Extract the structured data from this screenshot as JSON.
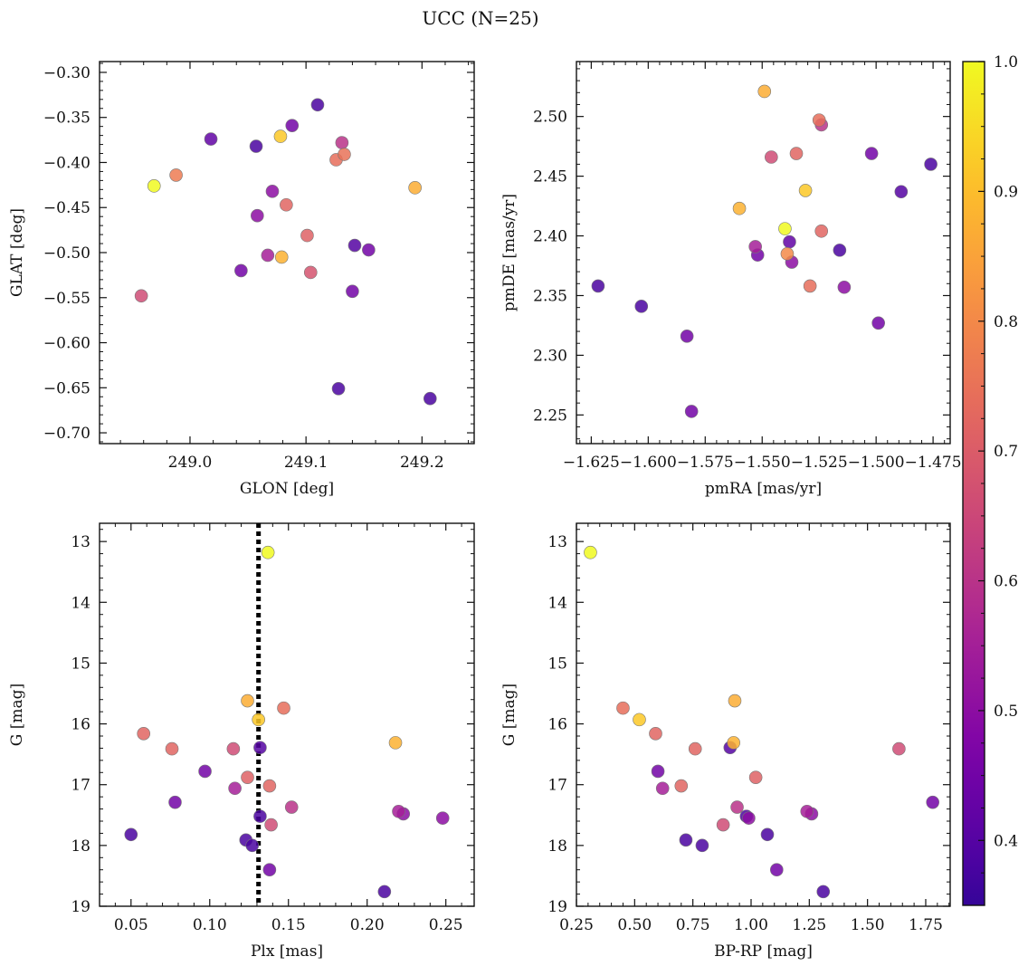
{
  "title": "UCC (N=25)",
  "colorbar": {
    "range": [
      0.35,
      1.0
    ],
    "ticks": [
      0.4,
      0.5,
      0.6,
      0.7,
      0.8,
      0.9,
      1.0
    ],
    "tick_labels": [
      "0.4",
      "0.5",
      "0.6",
      "0.7",
      "0.8",
      "0.9",
      "1.0"
    ],
    "colormap": "plasma"
  },
  "chart_data": [
    {
      "type": "scatter",
      "xlabel": "GLON [deg]",
      "ylabel": "GLAT [deg]",
      "xlim": [
        248.922,
        249.245
      ],
      "ylim": [
        -0.712,
        -0.288
      ],
      "xticks": [
        249.0,
        249.1,
        249.2
      ],
      "xtick_labels": [
        "249.0",
        "249.1",
        "249.2"
      ],
      "yticks": [
        -0.7,
        -0.65,
        -0.6,
        -0.55,
        -0.5,
        -0.45,
        -0.4,
        -0.35,
        -0.3
      ],
      "ytick_labels": [
        "−0.70",
        "−0.65",
        "−0.60",
        "−0.55",
        "−0.50",
        "−0.45",
        "−0.40",
        "−0.35",
        "−0.30"
      ],
      "points": [
        {
          "x": 249.11,
          "y": -0.336,
          "c": 0.38
        },
        {
          "x": 249.088,
          "y": -0.359,
          "c": 0.45
        },
        {
          "x": 249.018,
          "y": -0.374,
          "c": 0.42
        },
        {
          "x": 249.057,
          "y": -0.382,
          "c": 0.38
        },
        {
          "x": 249.078,
          "y": -0.371,
          "c": 0.92
        },
        {
          "x": 249.131,
          "y": -0.378,
          "c": 0.6
        },
        {
          "x": 249.133,
          "y": -0.391,
          "c": 0.75
        },
        {
          "x": 249.126,
          "y": -0.397,
          "c": 0.74
        },
        {
          "x": 248.969,
          "y": -0.426,
          "c": 1.0
        },
        {
          "x": 248.988,
          "y": -0.414,
          "c": 0.77
        },
        {
          "x": 249.194,
          "y": -0.428,
          "c": 0.87
        },
        {
          "x": 249.071,
          "y": -0.432,
          "c": 0.5
        },
        {
          "x": 249.083,
          "y": -0.447,
          "c": 0.72
        },
        {
          "x": 249.058,
          "y": -0.459,
          "c": 0.5
        },
        {
          "x": 249.101,
          "y": -0.481,
          "c": 0.71
        },
        {
          "x": 249.142,
          "y": -0.492,
          "c": 0.4
        },
        {
          "x": 249.154,
          "y": -0.497,
          "c": 0.45
        },
        {
          "x": 249.067,
          "y": -0.503,
          "c": 0.55
        },
        {
          "x": 249.079,
          "y": -0.505,
          "c": 0.88
        },
        {
          "x": 249.044,
          "y": -0.52,
          "c": 0.45
        },
        {
          "x": 249.104,
          "y": -0.522,
          "c": 0.68
        },
        {
          "x": 249.14,
          "y": -0.543,
          "c": 0.45
        },
        {
          "x": 248.958,
          "y": -0.548,
          "c": 0.66
        },
        {
          "x": 249.128,
          "y": -0.651,
          "c": 0.38
        },
        {
          "x": 249.207,
          "y": -0.662,
          "c": 0.38
        }
      ]
    },
    {
      "type": "scatter",
      "xlabel": "pmRA [mas/yr]",
      "ylabel": "pmDE [mas/yr]",
      "xlim": [
        -1.6315,
        -1.4675
      ],
      "ylim": [
        2.226,
        2.546
      ],
      "xticks": [
        -1.625,
        -1.6,
        -1.575,
        -1.55,
        -1.525,
        -1.5,
        -1.475
      ],
      "xtick_labels": [
        "−1.625",
        "−1.600",
        "−1.575",
        "−1.550",
        "−1.525",
        "−1.500",
        "−1.475"
      ],
      "yticks": [
        2.25,
        2.3,
        2.35,
        2.4,
        2.45,
        2.5
      ],
      "ytick_labels": [
        "2.25",
        "2.30",
        "2.35",
        "2.40",
        "2.45",
        "2.50"
      ],
      "points": [
        {
          "x": -1.549,
          "y": 2.521,
          "c": 0.87
        },
        {
          "x": -1.525,
          "y": 2.497,
          "c": 0.74
        },
        {
          "x": -1.524,
          "y": 2.493,
          "c": 0.6
        },
        {
          "x": -1.546,
          "y": 2.466,
          "c": 0.66
        },
        {
          "x": -1.535,
          "y": 2.469,
          "c": 0.72
        },
        {
          "x": -1.502,
          "y": 2.469,
          "c": 0.45
        },
        {
          "x": -1.476,
          "y": 2.46,
          "c": 0.38
        },
        {
          "x": -1.489,
          "y": 2.437,
          "c": 0.4
        },
        {
          "x": -1.531,
          "y": 2.438,
          "c": 0.92
        },
        {
          "x": -1.56,
          "y": 2.423,
          "c": 0.88
        },
        {
          "x": -1.54,
          "y": 2.406,
          "c": 1.0
        },
        {
          "x": -1.524,
          "y": 2.404,
          "c": 0.72
        },
        {
          "x": -1.538,
          "y": 2.395,
          "c": 0.42
        },
        {
          "x": -1.553,
          "y": 2.391,
          "c": 0.55
        },
        {
          "x": -1.539,
          "y": 2.385,
          "c": 0.8
        },
        {
          "x": -1.552,
          "y": 2.384,
          "c": 0.45
        },
        {
          "x": -1.516,
          "y": 2.388,
          "c": 0.38
        },
        {
          "x": -1.537,
          "y": 2.378,
          "c": 0.5
        },
        {
          "x": -1.529,
          "y": 2.358,
          "c": 0.74
        },
        {
          "x": -1.514,
          "y": 2.357,
          "c": 0.5
        },
        {
          "x": -1.622,
          "y": 2.358,
          "c": 0.38
        },
        {
          "x": -1.603,
          "y": 2.341,
          "c": 0.38
        },
        {
          "x": -1.499,
          "y": 2.327,
          "c": 0.45
        },
        {
          "x": -1.583,
          "y": 2.316,
          "c": 0.45
        },
        {
          "x": -1.581,
          "y": 2.253,
          "c": 0.45
        }
      ]
    },
    {
      "type": "scatter",
      "xlabel": "Plx [mas]",
      "ylabel": "G [mag]",
      "xlim": [
        0.03,
        0.268
      ],
      "ylim": [
        19,
        12.7
      ],
      "xticks": [
        0.05,
        0.1,
        0.15,
        0.2,
        0.25
      ],
      "xtick_labels": [
        "0.05",
        "0.10",
        "0.15",
        "0.20",
        "0.25"
      ],
      "yticks": [
        13,
        14,
        15,
        16,
        17,
        18,
        19
      ],
      "ytick_labels": [
        "13",
        "14",
        "15",
        "16",
        "17",
        "18",
        "19"
      ],
      "vline": 0.131,
      "points": [
        {
          "x": 0.137,
          "y": 13.18,
          "c": 1.0
        },
        {
          "x": 0.124,
          "y": 15.62,
          "c": 0.87
        },
        {
          "x": 0.147,
          "y": 15.74,
          "c": 0.74
        },
        {
          "x": 0.131,
          "y": 15.93,
          "c": 0.92
        },
        {
          "x": 0.058,
          "y": 16.16,
          "c": 0.72
        },
        {
          "x": 0.218,
          "y": 16.31,
          "c": 0.88
        },
        {
          "x": 0.076,
          "y": 16.41,
          "c": 0.72
        },
        {
          "x": 0.115,
          "y": 16.41,
          "c": 0.66
        },
        {
          "x": 0.132,
          "y": 16.39,
          "c": 0.4
        },
        {
          "x": 0.097,
          "y": 16.78,
          "c": 0.45
        },
        {
          "x": 0.124,
          "y": 16.88,
          "c": 0.71
        },
        {
          "x": 0.138,
          "y": 17.02,
          "c": 0.72
        },
        {
          "x": 0.116,
          "y": 17.06,
          "c": 0.55
        },
        {
          "x": 0.078,
          "y": 17.29,
          "c": 0.45
        },
        {
          "x": 0.152,
          "y": 17.37,
          "c": 0.6
        },
        {
          "x": 0.22,
          "y": 17.44,
          "c": 0.55
        },
        {
          "x": 0.223,
          "y": 17.48,
          "c": 0.5
        },
        {
          "x": 0.132,
          "y": 17.52,
          "c": 0.38
        },
        {
          "x": 0.248,
          "y": 17.55,
          "c": 0.5
        },
        {
          "x": 0.139,
          "y": 17.66,
          "c": 0.66
        },
        {
          "x": 0.05,
          "y": 17.82,
          "c": 0.38
        },
        {
          "x": 0.123,
          "y": 17.91,
          "c": 0.38
        },
        {
          "x": 0.127,
          "y": 18.0,
          "c": 0.38
        },
        {
          "x": 0.138,
          "y": 18.4,
          "c": 0.45
        },
        {
          "x": 0.211,
          "y": 18.76,
          "c": 0.38
        }
      ]
    },
    {
      "type": "scatter",
      "xlabel": "BP-RP [mag]",
      "ylabel": "G [mag]",
      "xlim": [
        0.25,
        1.855
      ],
      "ylim": [
        19,
        12.7
      ],
      "xticks": [
        0.25,
        0.5,
        0.75,
        1.0,
        1.25,
        1.5,
        1.75
      ],
      "xtick_labels": [
        "0.25",
        "0.50",
        "0.75",
        "1.00",
        "1.25",
        "1.50",
        "1.75"
      ],
      "yticks": [
        13,
        14,
        15,
        16,
        17,
        18,
        19
      ],
      "ytick_labels": [
        "13",
        "14",
        "15",
        "16",
        "17",
        "18",
        "19"
      ],
      "points": [
        {
          "x": 0.31,
          "y": 13.18,
          "c": 1.0
        },
        {
          "x": 0.45,
          "y": 15.74,
          "c": 0.74
        },
        {
          "x": 0.52,
          "y": 15.93,
          "c": 0.92
        },
        {
          "x": 0.93,
          "y": 15.62,
          "c": 0.87
        },
        {
          "x": 0.59,
          "y": 16.16,
          "c": 0.72
        },
        {
          "x": 0.925,
          "y": 16.31,
          "c": 0.88
        },
        {
          "x": 0.76,
          "y": 16.41,
          "c": 0.72
        },
        {
          "x": 0.91,
          "y": 16.39,
          "c": 0.4
        },
        {
          "x": 1.635,
          "y": 16.41,
          "c": 0.66
        },
        {
          "x": 0.6,
          "y": 16.78,
          "c": 0.45
        },
        {
          "x": 1.02,
          "y": 16.88,
          "c": 0.71
        },
        {
          "x": 0.7,
          "y": 17.02,
          "c": 0.72
        },
        {
          "x": 0.62,
          "y": 17.06,
          "c": 0.55
        },
        {
          "x": 1.78,
          "y": 17.29,
          "c": 0.45
        },
        {
          "x": 0.94,
          "y": 17.37,
          "c": 0.6
        },
        {
          "x": 1.24,
          "y": 17.44,
          "c": 0.55
        },
        {
          "x": 1.26,
          "y": 17.48,
          "c": 0.5
        },
        {
          "x": 0.98,
          "y": 17.52,
          "c": 0.38
        },
        {
          "x": 0.99,
          "y": 17.55,
          "c": 0.5
        },
        {
          "x": 0.88,
          "y": 17.66,
          "c": 0.66
        },
        {
          "x": 1.07,
          "y": 17.82,
          "c": 0.38
        },
        {
          "x": 0.72,
          "y": 17.91,
          "c": 0.38
        },
        {
          "x": 0.79,
          "y": 18.0,
          "c": 0.38
        },
        {
          "x": 1.11,
          "y": 18.4,
          "c": 0.45
        },
        {
          "x": 1.31,
          "y": 18.76,
          "c": 0.38
        }
      ]
    }
  ]
}
